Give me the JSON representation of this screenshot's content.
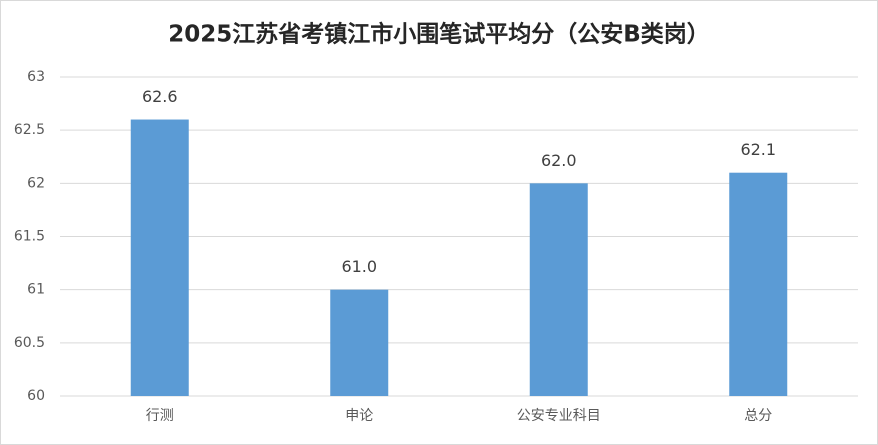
{
  "chart_data": {
    "type": "bar",
    "title": "2025江苏省考镇江市小围笔试平均分（公安B类岗）",
    "categories": [
      "行测",
      "申论",
      "公安专业科目",
      "总分"
    ],
    "values": [
      62.6,
      61.0,
      62.0,
      62.1
    ],
    "value_labels": [
      "62.6",
      "61.0",
      "62.0",
      "62.1"
    ],
    "color": "#5b9bd5",
    "ylim": [
      60,
      63
    ],
    "yticks": [
      60,
      60.5,
      61,
      61.5,
      62,
      62.5,
      63
    ],
    "grid": true
  }
}
